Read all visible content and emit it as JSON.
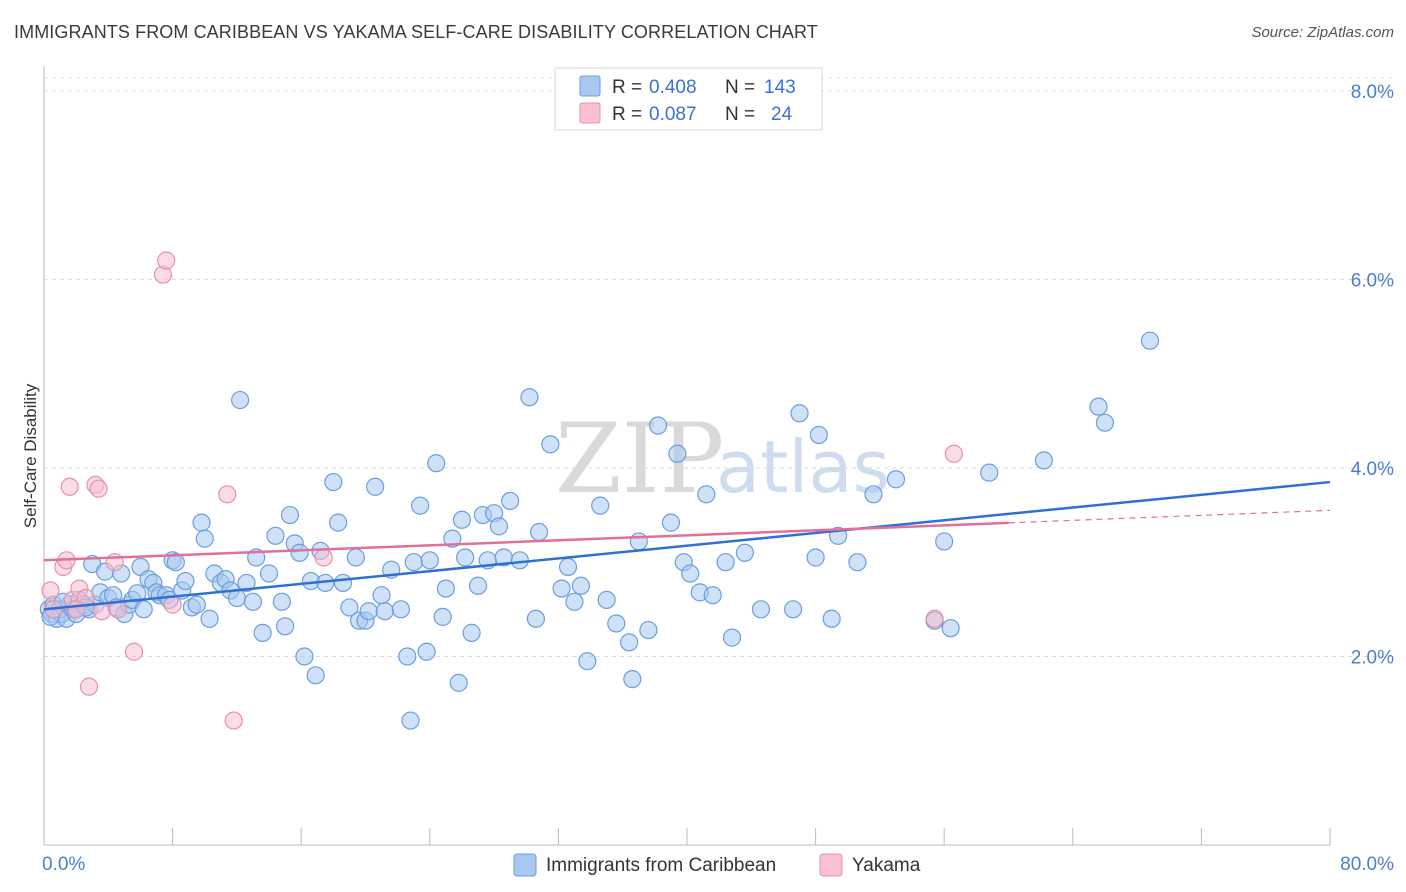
{
  "title": "IMMIGRANTS FROM CARIBBEAN VS YAKAMA SELF-CARE DISABILITY CORRELATION CHART",
  "source": "Source: ZipAtlas.com",
  "watermark": {
    "zip": "ZIP",
    "atlas": "atlas"
  },
  "colors": {
    "blue_fill": "#a8c8f0",
    "blue_stroke": "#6a9ee0",
    "blue_line": "#2f6fd6",
    "pink_fill": "#f8c0d0",
    "pink_stroke": "#e890aa",
    "pink_line": "#e0709a",
    "axis_text": "#4a7fd0",
    "grid": "#dcdcdc"
  },
  "legend": {
    "rows": [
      {
        "r_label": "R =",
        "r_value": "0.408",
        "n_label": "N =",
        "n_value": "143"
      },
      {
        "r_label": "R =",
        "r_value": "0.087",
        "n_label": "N =",
        "n_value": "24"
      }
    ]
  },
  "chart_data": {
    "type": "scatter",
    "title": "IMMIGRANTS FROM CARIBBEAN VS YAKAMA SELF-CARE DISABILITY CORRELATION CHART",
    "xlabel": "",
    "ylabel": "Self-Care Disability",
    "xlim": [
      0,
      80
    ],
    "ylim": [
      0,
      8.2
    ],
    "x_tick_labels": [
      "0.0%",
      "80.0%"
    ],
    "y_ticks": [
      2,
      4,
      6,
      8
    ],
    "y_tick_labels": [
      "2.0%",
      "4.0%",
      "6.0%",
      "8.0%"
    ],
    "series": [
      {
        "name": "Immigrants from Caribbean",
        "color": "#a8c8f0",
        "trend": {
          "x": [
            0,
            80
          ],
          "y": [
            2.5,
            3.85
          ],
          "dashed_from": null
        },
        "points": [
          [
            0.3,
            2.5
          ],
          [
            0.5,
            2.45
          ],
          [
            0.6,
            2.55
          ],
          [
            0.8,
            2.4
          ],
          [
            1.0,
            2.5
          ],
          [
            1.1,
            2.45
          ],
          [
            1.4,
            2.4
          ],
          [
            1.6,
            2.55
          ],
          [
            1.8,
            2.5
          ],
          [
            2.0,
            2.45
          ],
          [
            2.2,
            2.6
          ],
          [
            2.5,
            2.55
          ],
          [
            2.8,
            2.5
          ],
          [
            3.0,
            2.98
          ],
          [
            3.2,
            2.55
          ],
          [
            3.5,
            2.68
          ],
          [
            3.8,
            2.9
          ],
          [
            4.0,
            2.62
          ],
          [
            4.3,
            2.65
          ],
          [
            4.5,
            2.52
          ],
          [
            4.8,
            2.88
          ],
          [
            5.0,
            2.45
          ],
          [
            5.3,
            2.55
          ],
          [
            5.5,
            2.6
          ],
          [
            5.8,
            2.67
          ],
          [
            6.0,
            2.95
          ],
          [
            6.2,
            2.5
          ],
          [
            6.5,
            2.82
          ],
          [
            6.8,
            2.78
          ],
          [
            7.0,
            2.68
          ],
          [
            7.2,
            2.65
          ],
          [
            7.6,
            2.65
          ],
          [
            7.8,
            2.6
          ],
          [
            8.0,
            3.02
          ],
          [
            8.2,
            3.0
          ],
          [
            8.6,
            2.7
          ],
          [
            8.8,
            2.8
          ],
          [
            9.2,
            2.52
          ],
          [
            9.5,
            2.55
          ],
          [
            9.8,
            3.42
          ],
          [
            10.0,
            3.25
          ],
          [
            10.3,
            2.4
          ],
          [
            10.6,
            2.88
          ],
          [
            11.0,
            2.78
          ],
          [
            11.3,
            2.82
          ],
          [
            11.6,
            2.7
          ],
          [
            12.0,
            2.62
          ],
          [
            12.2,
            4.72
          ],
          [
            12.6,
            2.78
          ],
          [
            13.0,
            2.58
          ],
          [
            13.2,
            3.05
          ],
          [
            13.6,
            2.25
          ],
          [
            14.0,
            2.88
          ],
          [
            14.4,
            3.28
          ],
          [
            14.8,
            2.58
          ],
          [
            15.0,
            2.32
          ],
          [
            15.3,
            3.5
          ],
          [
            15.6,
            3.2
          ],
          [
            15.9,
            3.1
          ],
          [
            16.2,
            2.0
          ],
          [
            16.6,
            2.8
          ],
          [
            16.9,
            1.8
          ],
          [
            17.2,
            3.12
          ],
          [
            17.5,
            2.78
          ],
          [
            18.0,
            3.85
          ],
          [
            18.3,
            3.42
          ],
          [
            18.6,
            2.78
          ],
          [
            19.0,
            2.52
          ],
          [
            19.4,
            3.05
          ],
          [
            19.6,
            2.38
          ],
          [
            20.0,
            2.38
          ],
          [
            20.2,
            2.48
          ],
          [
            20.6,
            3.8
          ],
          [
            21.0,
            2.65
          ],
          [
            21.2,
            2.48
          ],
          [
            21.6,
            2.92
          ],
          [
            22.2,
            2.5
          ],
          [
            22.6,
            2.0
          ],
          [
            22.8,
            1.32
          ],
          [
            23.0,
            3.0
          ],
          [
            23.4,
            3.6
          ],
          [
            23.8,
            2.05
          ],
          [
            24.0,
            3.02
          ],
          [
            24.4,
            4.05
          ],
          [
            24.8,
            2.42
          ],
          [
            25.0,
            2.72
          ],
          [
            25.4,
            3.25
          ],
          [
            25.8,
            1.72
          ],
          [
            26.0,
            3.45
          ],
          [
            26.2,
            3.05
          ],
          [
            26.6,
            2.25
          ],
          [
            27.0,
            2.75
          ],
          [
            27.3,
            3.5
          ],
          [
            27.6,
            3.02
          ],
          [
            28.0,
            3.52
          ],
          [
            28.3,
            3.38
          ],
          [
            28.6,
            3.05
          ],
          [
            29.0,
            3.65
          ],
          [
            29.6,
            3.02
          ],
          [
            30.2,
            4.75
          ],
          [
            30.6,
            2.4
          ],
          [
            30.8,
            3.32
          ],
          [
            31.5,
            4.25
          ],
          [
            32.2,
            2.72
          ],
          [
            32.6,
            2.95
          ],
          [
            33.0,
            2.58
          ],
          [
            33.4,
            2.75
          ],
          [
            33.8,
            1.95
          ],
          [
            34.6,
            3.6
          ],
          [
            35.0,
            2.6
          ],
          [
            35.6,
            2.35
          ],
          [
            36.4,
            2.15
          ],
          [
            36.6,
            1.76
          ],
          [
            37.0,
            3.22
          ],
          [
            37.6,
            2.28
          ],
          [
            38.2,
            4.45
          ],
          [
            39.0,
            3.42
          ],
          [
            39.4,
            4.15
          ],
          [
            39.8,
            3.0
          ],
          [
            40.2,
            2.88
          ],
          [
            40.8,
            2.68
          ],
          [
            41.2,
            3.72
          ],
          [
            41.6,
            2.65
          ],
          [
            42.4,
            3.0
          ],
          [
            42.8,
            2.2
          ],
          [
            43.6,
            3.1
          ],
          [
            44.6,
            2.5
          ],
          [
            46.6,
            2.5
          ],
          [
            47.0,
            4.58
          ],
          [
            48.0,
            3.05
          ],
          [
            48.2,
            4.35
          ],
          [
            49.0,
            2.4
          ],
          [
            49.4,
            3.28
          ],
          [
            50.6,
            3.0
          ],
          [
            51.6,
            3.72
          ],
          [
            53.0,
            3.88
          ],
          [
            55.4,
            2.38
          ],
          [
            56.0,
            3.22
          ],
          [
            56.4,
            2.3
          ],
          [
            58.8,
            3.95
          ],
          [
            62.2,
            4.08
          ],
          [
            65.6,
            4.65
          ],
          [
            66.0,
            4.48
          ],
          [
            68.8,
            5.35
          ],
          [
            0.4,
            2.42
          ],
          [
            1.2,
            2.58
          ],
          [
            2.6,
            2.52
          ]
        ]
      },
      {
        "name": "Yakama",
        "color": "#f8c0d0",
        "trend": {
          "x": [
            0,
            80
          ],
          "y": [
            3.02,
            3.55
          ],
          "dashed_from": 60
        },
        "points": [
          [
            0.4,
            2.7
          ],
          [
            0.6,
            2.5
          ],
          [
            1.2,
            2.95
          ],
          [
            1.4,
            3.02
          ],
          [
            1.6,
            3.8
          ],
          [
            1.8,
            2.6
          ],
          [
            2.2,
            2.72
          ],
          [
            2.6,
            2.62
          ],
          [
            2.8,
            1.68
          ],
          [
            3.2,
            3.82
          ],
          [
            3.4,
            3.78
          ],
          [
            3.6,
            2.48
          ],
          [
            4.4,
            3.0
          ],
          [
            4.6,
            2.5
          ],
          [
            5.6,
            2.05
          ],
          [
            7.4,
            6.05
          ],
          [
            7.6,
            6.2
          ],
          [
            8.0,
            2.55
          ],
          [
            11.4,
            3.72
          ],
          [
            11.8,
            1.32
          ],
          [
            17.4,
            3.05
          ],
          [
            55.4,
            2.4
          ],
          [
            56.6,
            4.15
          ],
          [
            2.0,
            2.5
          ]
        ]
      }
    ]
  },
  "bottom_legend": [
    {
      "label": "Immigrants from Caribbean"
    },
    {
      "label": "Yakama"
    }
  ]
}
